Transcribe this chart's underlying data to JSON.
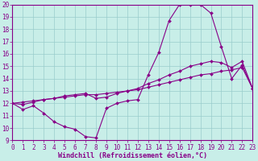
{
  "background_color": "#c8eee8",
  "line_color": "#880088",
  "grid_color": "#99cccc",
  "xlabel": "Windchill (Refroidissement éolien,°C)",
  "xlim": [
    0,
    23
  ],
  "ylim": [
    9,
    20
  ],
  "xticks": [
    0,
    1,
    2,
    3,
    4,
    5,
    6,
    7,
    8,
    9,
    10,
    11,
    12,
    13,
    14,
    15,
    16,
    17,
    18,
    19,
    20,
    21,
    22,
    23
  ],
  "yticks": [
    9,
    10,
    11,
    12,
    13,
    14,
    15,
    16,
    17,
    18,
    19,
    20
  ],
  "line1_x": [
    0,
    1,
    2,
    3,
    4,
    5,
    6,
    7,
    8,
    9,
    10,
    11,
    12,
    13,
    14,
    15,
    16,
    17,
    18,
    19,
    20,
    21,
    22,
    23
  ],
  "line1_y": [
    12.0,
    11.5,
    11.8,
    11.2,
    10.5,
    10.1,
    9.9,
    9.3,
    9.2,
    11.6,
    12.0,
    12.2,
    12.3,
    14.3,
    16.1,
    18.7,
    20.0,
    20.0,
    20.0,
    19.3,
    16.6,
    14.0,
    15.1,
    13.2
  ],
  "line2_x": [
    0,
    1,
    2,
    3,
    4,
    5,
    6,
    7,
    8,
    9,
    10,
    11,
    12,
    13,
    14,
    15,
    16,
    17,
    18,
    19,
    20,
    21,
    22,
    23
  ],
  "line2_y": [
    12.0,
    11.9,
    12.1,
    12.3,
    12.4,
    12.6,
    12.7,
    12.8,
    12.4,
    12.5,
    12.8,
    13.0,
    13.2,
    13.6,
    13.9,
    14.3,
    14.6,
    15.0,
    15.2,
    15.4,
    15.3,
    14.9,
    15.4,
    13.2
  ],
  "line3_x": [
    0,
    1,
    2,
    3,
    4,
    5,
    6,
    7,
    8,
    9,
    10,
    11,
    12,
    13,
    14,
    15,
    16,
    17,
    18,
    19,
    20,
    21,
    22,
    23
  ],
  "line3_y": [
    12.0,
    12.1,
    12.2,
    12.3,
    12.4,
    12.5,
    12.6,
    12.7,
    12.7,
    12.8,
    12.9,
    13.0,
    13.1,
    13.3,
    13.5,
    13.7,
    13.9,
    14.1,
    14.3,
    14.4,
    14.6,
    14.7,
    14.9,
    13.2
  ],
  "marker": "D",
  "markersize": 2.0,
  "linewidth": 0.8,
  "xlabel_fontsize": 6,
  "tick_fontsize": 5.5
}
